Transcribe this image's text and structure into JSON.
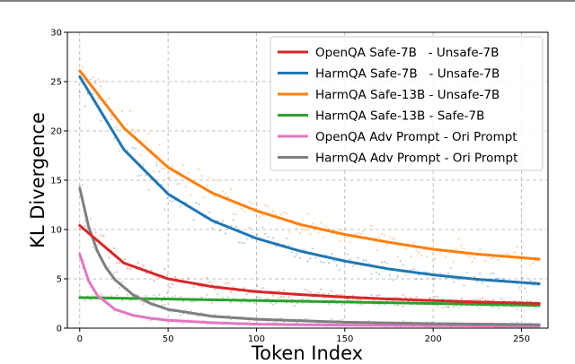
{
  "chart_data": {
    "type": "line",
    "title": "",
    "xlabel": "Token Index",
    "ylabel": "KL Divergence",
    "xlim": [
      -7,
      265
    ],
    "ylim": [
      0,
      30
    ],
    "xticks": [
      0,
      50,
      100,
      150,
      200,
      250
    ],
    "yticks": [
      0,
      5,
      10,
      15,
      20,
      25,
      30
    ],
    "grid": true,
    "legend_position": "top-right",
    "series": [
      {
        "name": "OpenQA Safe-7B   - Unsafe-7B",
        "color": "#d62728",
        "x": [
          0,
          25,
          50,
          75,
          100,
          125,
          150,
          175,
          200,
          225,
          260
        ],
        "y": [
          10.4,
          6.6,
          5.0,
          4.2,
          3.7,
          3.4,
          3.15,
          2.95,
          2.8,
          2.65,
          2.5
        ]
      },
      {
        "name": "HarmQA Safe-7B   - Unsafe-7B",
        "color": "#1f77b4",
        "x": [
          0,
          25,
          50,
          75,
          100,
          125,
          150,
          175,
          200,
          225,
          260
        ],
        "y": [
          25.5,
          18.1,
          13.6,
          10.9,
          9.1,
          7.8,
          6.8,
          6.0,
          5.4,
          4.95,
          4.5
        ]
      },
      {
        "name": "HarmQA Safe-13B - Unsafe-7B",
        "color": "#ff7f0e",
        "x": [
          0,
          25,
          50,
          75,
          100,
          125,
          150,
          175,
          200,
          225,
          260
        ],
        "y": [
          26.1,
          20.3,
          16.3,
          13.7,
          11.9,
          10.5,
          9.5,
          8.7,
          8.0,
          7.5,
          7.0
        ]
      },
      {
        "name": "HarmQA Safe-13B - Safe-7B",
        "color": "#2ca02c",
        "x": [
          0,
          50,
          100,
          150,
          200,
          260
        ],
        "y": [
          3.1,
          2.95,
          2.8,
          2.65,
          2.5,
          2.3
        ]
      },
      {
        "name": "OpenQA Adv Prompt - Ori Prompt",
        "color": "#e377c2",
        "x": [
          0,
          5,
          10,
          20,
          30,
          40,
          50,
          75,
          100,
          150,
          200,
          260
        ],
        "y": [
          7.5,
          4.8,
          3.3,
          1.9,
          1.3,
          1.0,
          0.8,
          0.55,
          0.4,
          0.3,
          0.25,
          0.2
        ]
      },
      {
        "name": "HarmQA Adv Prompt - Ori Prompt",
        "color": "#7f7f7f",
        "x": [
          0,
          5,
          10,
          15,
          20,
          30,
          40,
          50,
          75,
          100,
          150,
          200,
          260
        ],
        "y": [
          14.2,
          10.3,
          7.8,
          6.1,
          4.9,
          3.4,
          2.5,
          1.9,
          1.2,
          0.9,
          0.6,
          0.45,
          0.35
        ]
      }
    ]
  }
}
